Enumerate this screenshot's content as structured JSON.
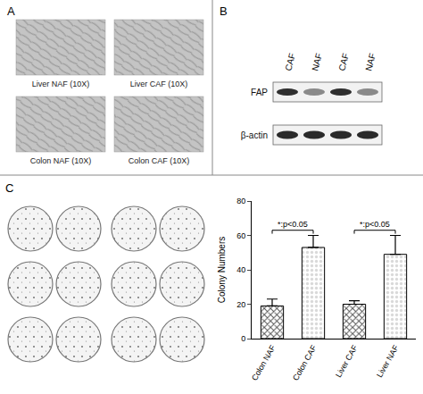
{
  "panels": {
    "A": {
      "label": "A",
      "images": [
        {
          "caption": "Liver NAF (10X)"
        },
        {
          "caption": "Liver CAF (10X)"
        },
        {
          "caption": "Colon NAF (10X)"
        },
        {
          "caption": "Colon CAF (10X)"
        }
      ]
    },
    "B": {
      "label": "B",
      "lanes": [
        "CAF",
        "NAF",
        "CAF",
        "NAF"
      ],
      "rows": [
        "FAP",
        "β-actin"
      ]
    },
    "C": {
      "label": "C"
    }
  },
  "chart_data": {
    "type": "bar",
    "categories": [
      "Colon NAF",
      "Colon CAF",
      "Liver CAF",
      "Liver NAF"
    ],
    "values": [
      19,
      53,
      20,
      49
    ],
    "errors": [
      4,
      7,
      2,
      11
    ],
    "colors": [
      "#555555",
      "#d9d9d9",
      "#555555",
      "#d9d9d9"
    ],
    "ylabel": "Colony Numbers",
    "ylim": [
      0,
      80
    ],
    "yticks": [
      0,
      20,
      40,
      60,
      80
    ],
    "annotations": [
      {
        "text": "*:p<0.05",
        "from": "Colon NAF",
        "to": "Colon CAF"
      },
      {
        "text": "*:p<0.05",
        "from": "Liver CAF",
        "to": "Liver NAF"
      }
    ]
  }
}
